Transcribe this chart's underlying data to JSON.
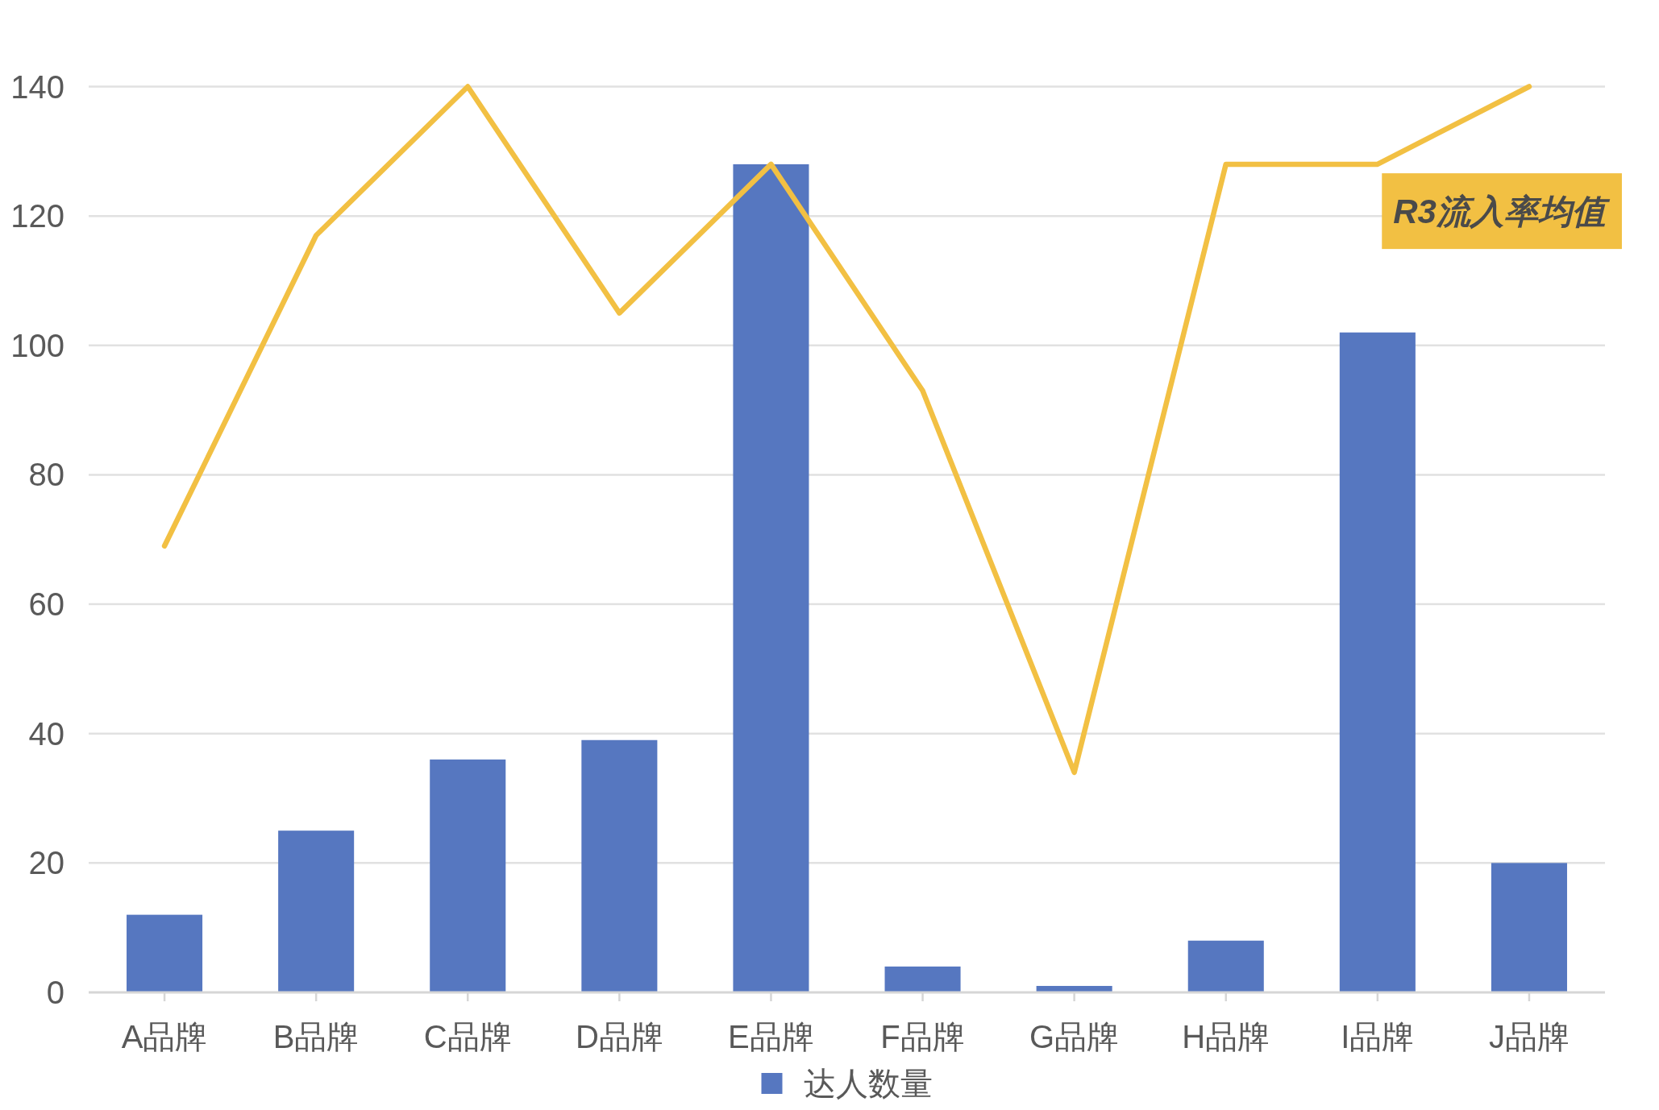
{
  "chart_data": {
    "type": "bar",
    "categories": [
      "A品牌",
      "B品牌",
      "C品牌",
      "D品牌",
      "E品牌",
      "F品牌",
      "G品牌",
      "H品牌",
      "I品牌",
      "J品牌"
    ],
    "series": [
      {
        "name": "达人数量",
        "color": "#5677c0",
        "values": [
          12,
          25,
          36,
          39,
          128,
          4,
          1,
          8,
          102,
          20
        ]
      },
      {
        "name": "R3流入率均值",
        "type": "line",
        "color": "#f2c043",
        "values": [
          69,
          117,
          140,
          105,
          128,
          93,
          34,
          128,
          128,
          140
        ]
      }
    ],
    "ylim": [
      0,
      140
    ],
    "yticks": [
      0,
      20,
      40,
      60,
      80,
      100,
      120,
      140
    ],
    "grid": "y",
    "legend": "bottom"
  }
}
